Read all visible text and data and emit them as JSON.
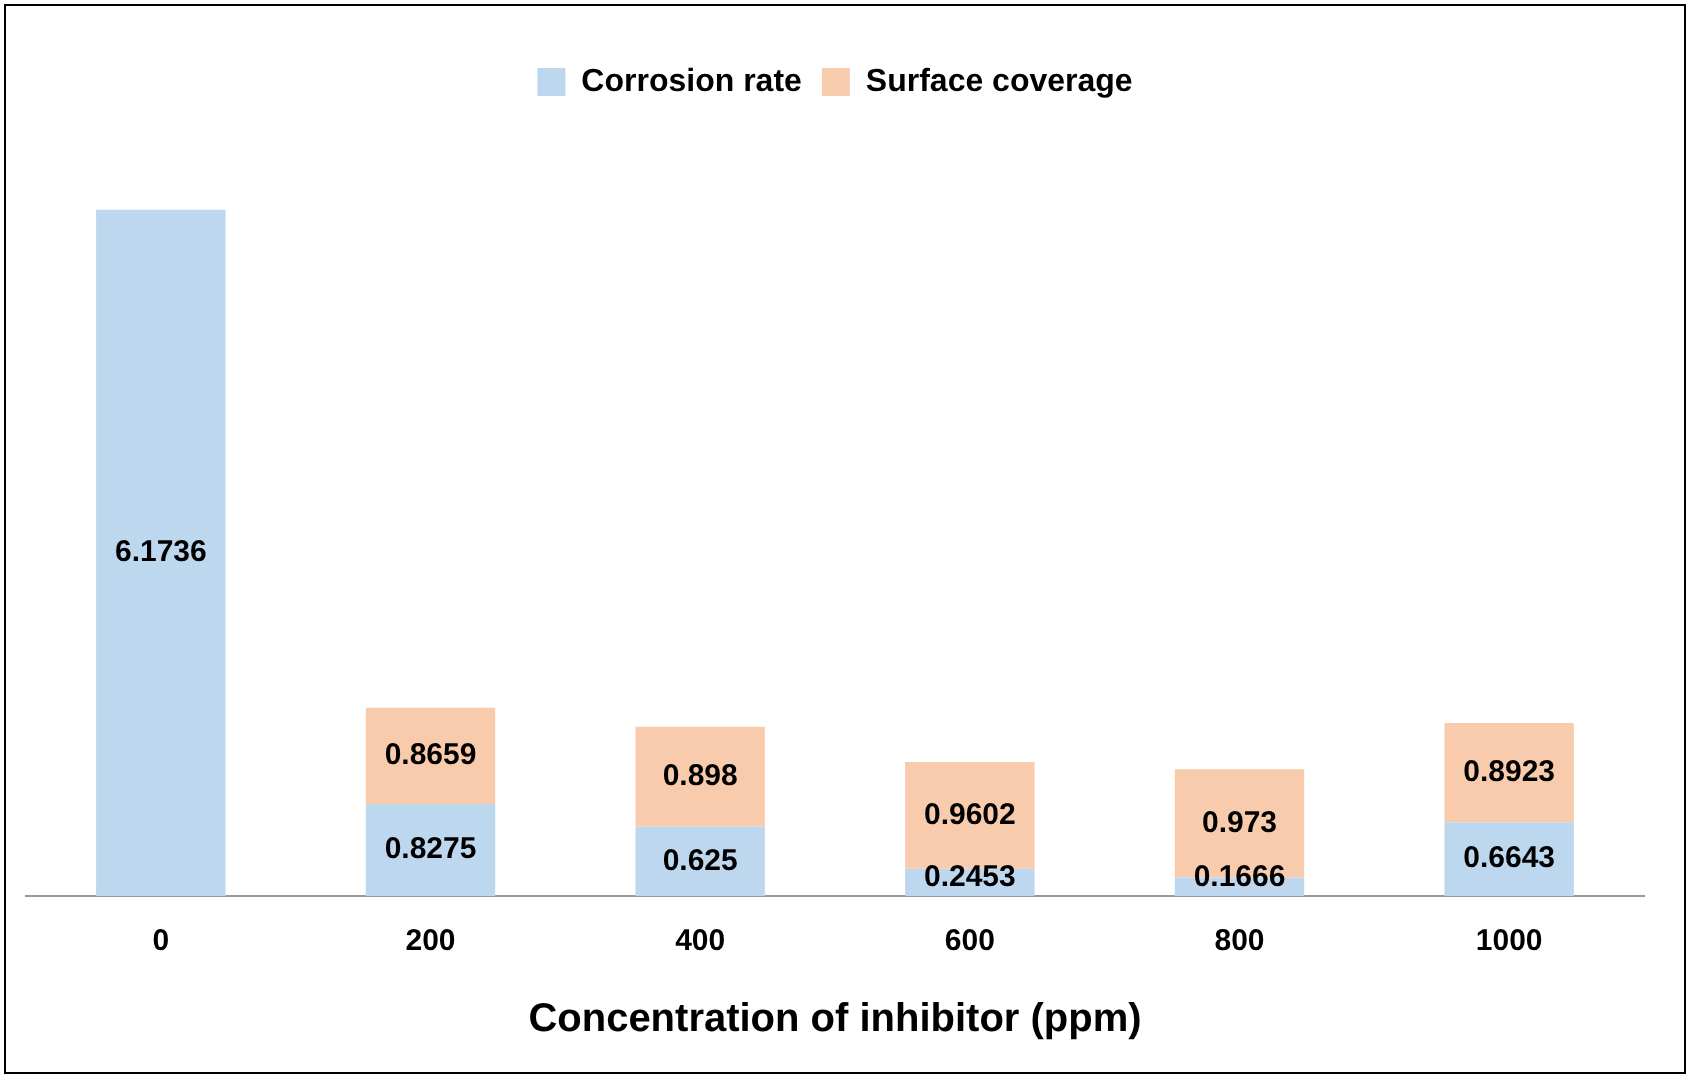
{
  "chart_data": {
    "type": "bar",
    "xlabel": "Concentration of inhibitor (ppm)",
    "categories": [
      "0",
      "200",
      "400",
      "600",
      "800",
      "1000"
    ],
    "stacked": true,
    "data_labels": true,
    "legend": "top",
    "grid": false,
    "series": [
      {
        "name": "Corrosion rate",
        "color": "#bdd7ee",
        "values": [
          6.1736,
          0.8275,
          0.625,
          0.2453,
          0.1666,
          0.6643
        ]
      },
      {
        "name": "Surface coverage",
        "color": "#f8cbad",
        "values": [
          null,
          0.8659,
          0.898,
          0.9602,
          0.973,
          0.8923
        ]
      }
    ]
  }
}
